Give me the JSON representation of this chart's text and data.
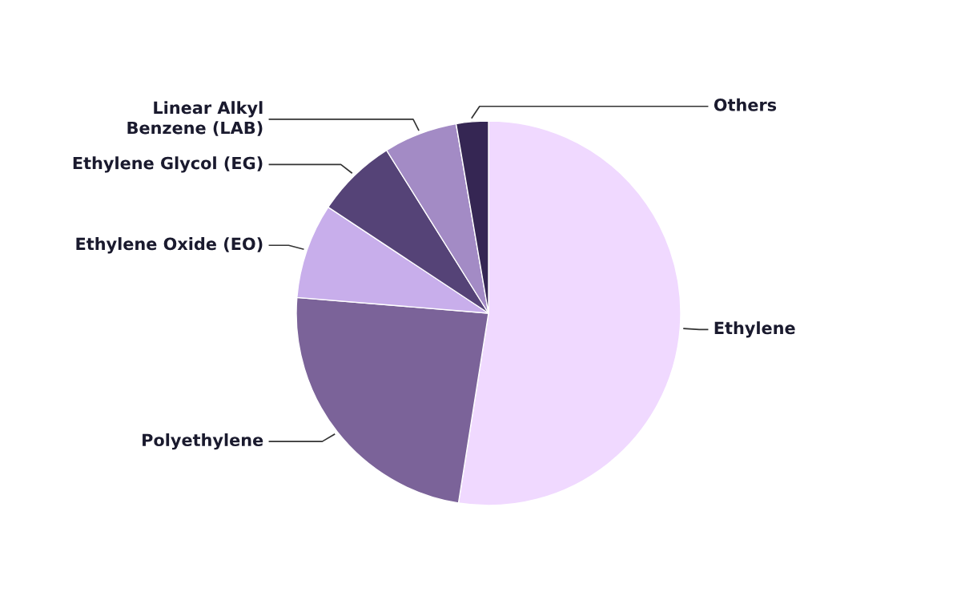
{
  "chart_data": {
    "type": "pie",
    "categories": [
      "Ethylene",
      "Polyethylene",
      "Ethylene Oxide (EO)",
      "Ethylene Glycol (EG)",
      "Linear Alkyl\nBenzene (LAB)",
      "Others"
    ],
    "values": [
      52.5,
      23.8,
      8.0,
      6.8,
      6.2,
      2.7
    ],
    "colors": [
      "#f0d9ff",
      "#7b6399",
      "#c8aeeb",
      "#554377",
      "#a38bc5",
      "#352653"
    ]
  }
}
